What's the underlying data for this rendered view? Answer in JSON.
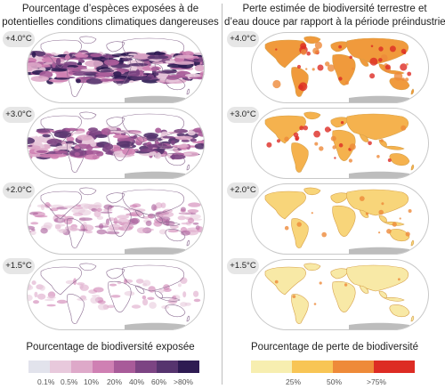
{
  "left": {
    "title_line1": "Pourcentage d’espèces exposées à de",
    "title_line2": "potentielles conditions climatiques dangereuses",
    "legend_title": "Pourcentage de biodiversité exposée",
    "legend_colors": [
      "#e2e3ec",
      "#e8c9dc",
      "#dea9c9",
      "#cf80b3",
      "#a85b99",
      "#7c4483",
      "#56346e",
      "#2e1b52"
    ],
    "legend_ticks": [
      "0.1%",
      "0.5%",
      "10%",
      "20%",
      "40%",
      "60%",
      ">80%"
    ]
  },
  "right": {
    "title_line1": "Perte estimée de biodiversité terrestre et",
    "title_line2": "d’eau douce par rapport à la période préindustrielle",
    "legend_title": "Pourcentage de perte de biodiversité",
    "legend_colors": [
      "#f7eeb0",
      "#f8c555",
      "#ee8a39",
      "#dd2c24"
    ],
    "legend_ticks": [
      "25%",
      "50%",
      ">75%"
    ]
  },
  "warming_levels": [
    "+4.0°C",
    "+3.0°C",
    "+2.0°C",
    "+1.5°C"
  ]
}
